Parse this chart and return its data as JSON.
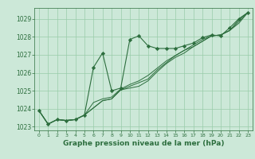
{
  "bg_color": "#cce8d8",
  "grid_color": "#99ccaa",
  "line_color": "#2d6e3e",
  "xlabel": "Graphe pression niveau de la mer (hPa)",
  "xlabel_color": "#2d6e3e",
  "ylim": [
    1022.8,
    1029.6
  ],
  "xlim": [
    -0.5,
    23.5
  ],
  "yticks": [
    1023,
    1024,
    1025,
    1026,
    1027,
    1028,
    1029
  ],
  "xticks": [
    0,
    1,
    2,
    3,
    4,
    5,
    6,
    7,
    8,
    9,
    10,
    11,
    12,
    13,
    14,
    15,
    16,
    17,
    18,
    19,
    20,
    21,
    22,
    23
  ],
  "series": [
    [
      1023.9,
      1023.15,
      1023.4,
      1023.35,
      1023.4,
      1023.65,
      1026.3,
      1027.1,
      1025.0,
      1025.15,
      1027.85,
      1028.05,
      1027.5,
      1027.35,
      1027.35,
      1027.35,
      1027.5,
      1027.65,
      1027.95,
      1028.1,
      1028.05,
      1028.5,
      1029.0,
      1029.35
    ],
    [
      1023.9,
      1023.15,
      1023.4,
      1023.35,
      1023.4,
      1023.65,
      1024.05,
      1024.45,
      1024.55,
      1025.05,
      1025.15,
      1025.25,
      1025.55,
      1026.05,
      1026.5,
      1026.85,
      1027.1,
      1027.45,
      1027.75,
      1028.05,
      1028.1,
      1028.35,
      1028.75,
      1029.35
    ],
    [
      1023.9,
      1023.15,
      1023.4,
      1023.35,
      1023.4,
      1023.65,
      1024.05,
      1024.45,
      1024.55,
      1025.05,
      1025.25,
      1025.45,
      1025.65,
      1026.15,
      1026.55,
      1026.95,
      1027.25,
      1027.45,
      1027.75,
      1028.05,
      1028.1,
      1028.35,
      1028.85,
      1029.35
    ],
    [
      1023.9,
      1023.15,
      1023.4,
      1023.35,
      1023.4,
      1023.65,
      1024.35,
      1024.55,
      1024.65,
      1025.1,
      1025.35,
      1025.55,
      1025.85,
      1026.25,
      1026.65,
      1026.95,
      1027.25,
      1027.55,
      1027.85,
      1028.05,
      1028.1,
      1028.35,
      1028.95,
      1029.35
    ]
  ],
  "font_size_tick": 5.5,
  "font_size_label": 6.5
}
